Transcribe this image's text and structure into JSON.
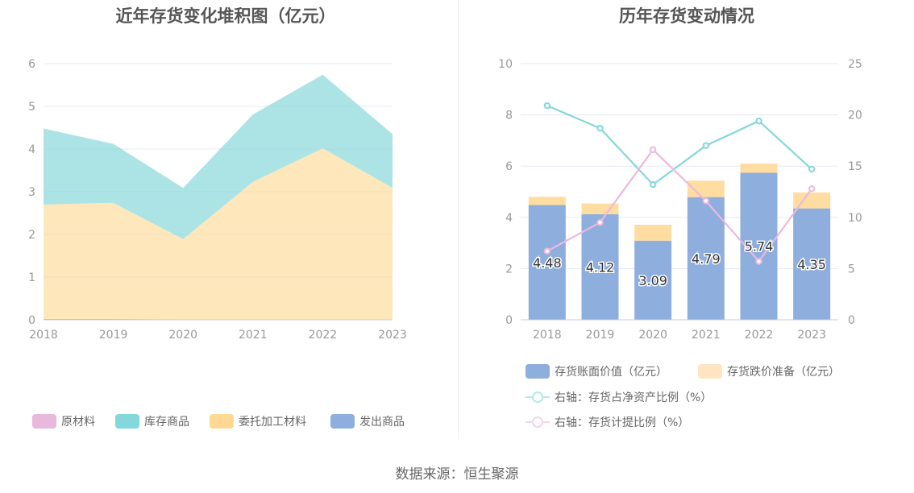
{
  "source_text": "数据来源：恒生聚源",
  "chart_data": [
    {
      "type": "area",
      "title": "近年存货变化堆积图（亿元）",
      "categories": [
        "2018",
        "2019",
        "2020",
        "2021",
        "2022",
        "2023"
      ],
      "ylim": [
        0,
        6
      ],
      "yticks": [
        0,
        1,
        2,
        3,
        4,
        5,
        6
      ],
      "stacked": true,
      "series": [
        {
          "name": "原材料",
          "color": "#e8b9dc",
          "values": [
            0,
            0,
            0,
            0,
            0,
            0
          ]
        },
        {
          "name": "库存商品",
          "color": "#84d7da",
          "values": [
            1.78,
            1.38,
            1.2,
            1.58,
            1.72,
            1.26
          ]
        },
        {
          "name": "委托加工材料",
          "color": "#ffd993",
          "values": [
            2.68,
            2.72,
            1.88,
            3.22,
            4.02,
            3.09
          ]
        },
        {
          "name": "发出商品",
          "color": "#8eaedd",
          "values": [
            0.02,
            0.02,
            0.01,
            0.01,
            0,
            0
          ]
        }
      ],
      "legend": [
        "原材料",
        "库存商品",
        "委托加工材料",
        "发出商品"
      ],
      "legend_position": "bottom",
      "grid": true
    },
    {
      "type": "bar",
      "title": "历年存货变动情况",
      "categories": [
        "2018",
        "2019",
        "2020",
        "2021",
        "2022",
        "2023"
      ],
      "ylim": [
        0,
        10
      ],
      "yticks": [
        0,
        2,
        4,
        6,
        8,
        10
      ],
      "y2lim": [
        0,
        25
      ],
      "y2ticks": [
        0,
        5,
        10,
        15,
        20,
        25
      ],
      "stacked": true,
      "series": [
        {
          "name": "存货账面价值（亿元）",
          "color": "#8eaedd",
          "type": "bar",
          "values": [
            4.48,
            4.12,
            3.09,
            4.79,
            5.74,
            4.35
          ],
          "labels": [
            "4.48",
            "4.12",
            "3.09",
            "4.79",
            "5.74",
            "4.35"
          ]
        },
        {
          "name": "存货跌价准备（亿元）",
          "color": "#ffdca0",
          "type": "bar",
          "values": [
            0.32,
            0.42,
            0.62,
            0.64,
            0.36,
            0.62
          ]
        },
        {
          "name": "右轴：存货占净资产比例（%）",
          "color": "#84d7da",
          "type": "line",
          "axis": "right",
          "values": [
            20.9,
            18.7,
            13.2,
            17.0,
            19.4,
            14.7
          ]
        },
        {
          "name": "右轴：存货计提比例（%）",
          "color": "#ecb9dc",
          "type": "line",
          "axis": "right",
          "values": [
            6.7,
            9.5,
            16.6,
            11.6,
            5.7,
            12.8
          ]
        }
      ],
      "legend_position": "bottom",
      "grid": true
    }
  ]
}
